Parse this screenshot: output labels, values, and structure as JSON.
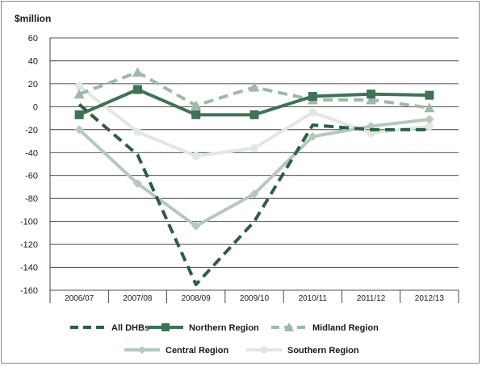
{
  "chart_data": {
    "type": "line",
    "ylabel": "$million",
    "xlabel": "",
    "title": "",
    "ylim": [
      -160,
      60
    ],
    "yticks": [
      60,
      40,
      20,
      0,
      -20,
      -40,
      -60,
      -80,
      -100,
      -120,
      -140,
      -160
    ],
    "grid": true,
    "legend_position": "bottom",
    "categories": [
      "2006/07",
      "2007/08",
      "2008/09",
      "2009/10",
      "2010/11",
      "2011/12",
      "2012/13"
    ],
    "series": [
      {
        "name": "All DHBs",
        "values": [
          2,
          -42,
          -155,
          -100,
          -16,
          -20,
          -20
        ],
        "color": "#2f5e45",
        "dash": "dashed",
        "marker": "none"
      },
      {
        "name": "Northern Region",
        "values": [
          -7,
          15,
          -7,
          -7,
          9,
          11,
          10
        ],
        "color": "#3f7256",
        "dash": "solid",
        "marker": "square"
      },
      {
        "name": "Midland Region",
        "values": [
          11,
          30,
          1,
          17,
          6,
          6,
          -1
        ],
        "color": "#9dbaa8",
        "dash": "dashed",
        "marker": "triangle"
      },
      {
        "name": "Central Region",
        "values": [
          -20,
          -67,
          -104,
          -76,
          -26,
          -17,
          -11
        ],
        "color": "#b4c9bc",
        "dash": "solid",
        "marker": "diamond"
      },
      {
        "name": "Southern Region",
        "values": [
          18,
          -22,
          -43,
          -36,
          -5,
          -23,
          -17
        ],
        "color": "#dfe9e2",
        "dash": "solid",
        "marker": "circle"
      }
    ]
  }
}
